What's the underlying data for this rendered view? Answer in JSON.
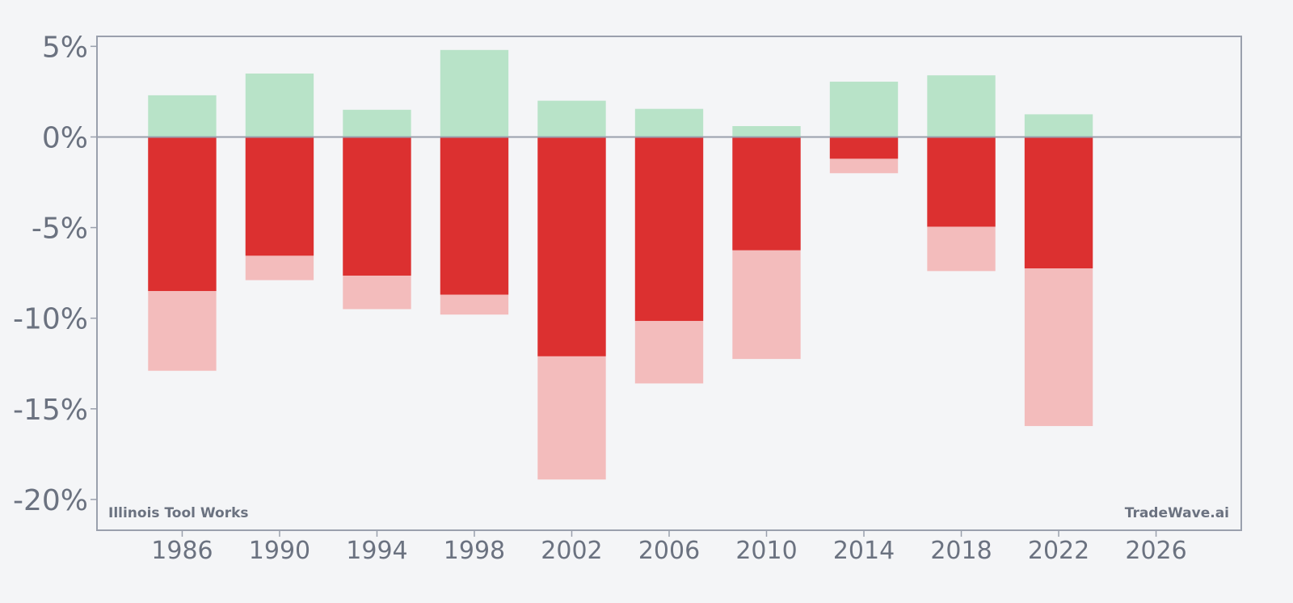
{
  "chart_data": {
    "type": "bar",
    "x": [
      1986,
      1990,
      1994,
      1998,
      2002,
      2006,
      2010,
      2014,
      2018,
      2022
    ],
    "series": [
      {
        "values": [
          2.3,
          3.5,
          1.5,
          4.8,
          2.0,
          1.55,
          0.6,
          3.05,
          3.4,
          1.25
        ]
      },
      {
        "values": [
          -8.5,
          -6.55,
          -7.65,
          -8.7,
          -12.1,
          -10.15,
          -6.25,
          -1.2,
          -4.95,
          -7.25
        ]
      },
      {
        "values": [
          -12.9,
          -7.9,
          -9.5,
          -9.8,
          -18.9,
          -13.6,
          -12.25,
          -2.0,
          -7.4,
          -15.95
        ]
      }
    ],
    "xticks": [
      "1986",
      "1990",
      "1994",
      "1998",
      "2002",
      "2006",
      "2010",
      "2014",
      "2018",
      "2022",
      "2026"
    ],
    "yticks": [
      "5%",
      "0%",
      "-5%",
      "-10%",
      "-15%",
      "-20%"
    ],
    "ytick_values": [
      5,
      0,
      -5,
      -10,
      -15,
      -20
    ],
    "xlim": [
      1982.5,
      2029.5
    ],
    "ylim": [
      -21.7,
      5.55
    ],
    "colors": {
      "positive": "#b8e3c8",
      "drawdown_dark": "#dc3030",
      "drawdown_light": "#f3bcbc",
      "axis": "#9aa0ad",
      "text": "#6b7280"
    },
    "grid": false
  },
  "watermark_left": "Illinois Tool Works",
  "watermark_right": "TradeWave.ai"
}
